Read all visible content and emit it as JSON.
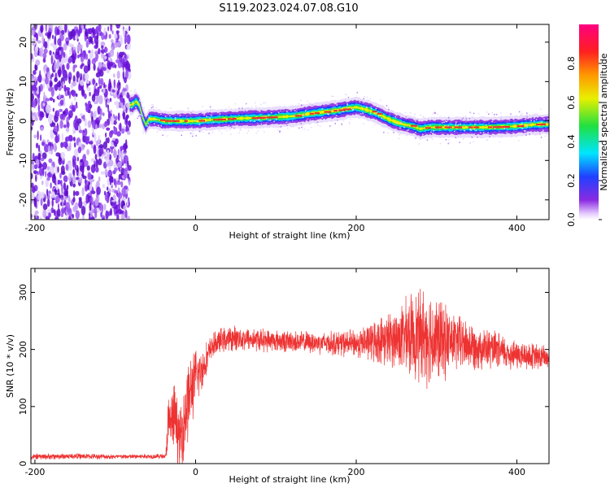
{
  "title": "S119.2023.024.07.08.G10",
  "colors": {
    "snr_line": "#ee3333",
    "spectrogram_noise": "#7a22e6",
    "track_core": "#e63030",
    "background": "#ffffff"
  },
  "chart_data": [
    {
      "type": "heatmap",
      "title": "S119.2023.024.07.08.G10",
      "xlabel": "Height of straight line (km)",
      "ylabel": "Frequency (Hz)",
      "xlim": [
        -205,
        440
      ],
      "ylim": [
        -25,
        24.5
      ],
      "xticks": [
        -200,
        0,
        200,
        400
      ],
      "yticks": [
        -20,
        -10,
        0,
        10,
        20
      ],
      "grid": false,
      "colorbar": {
        "label": "Normalized spectral amplitude",
        "range": [
          0.0,
          1.0
        ],
        "ticks": [
          "0.0",
          "0.2",
          "0.4",
          "0.6",
          "0.8"
        ],
        "colormap": "rainbow (white-violet-blue-cyan-green-yellow-orange-red-magenta)"
      },
      "noise_region": {
        "x_from": -205,
        "x_to": -82
      },
      "peak_frequency_track": {
        "x": [
          -82,
          -78,
          -74,
          -70,
          -66,
          -62,
          -58,
          -50,
          -40,
          -20,
          0,
          20,
          40,
          60,
          80,
          100,
          120,
          140,
          160,
          180,
          190,
          200,
          210,
          220,
          230,
          240,
          250,
          260,
          270,
          280,
          290,
          300,
          320,
          340,
          360,
          380,
          400,
          420,
          440
        ],
        "y": [
          4,
          4.2,
          5,
          4,
          1,
          -1,
          0.5,
          0.5,
          0,
          0,
          0,
          0.3,
          0.5,
          0.7,
          0.8,
          1,
          1.2,
          1.8,
          2.3,
          2.8,
          3.2,
          3.5,
          3,
          2.4,
          1.5,
          0.5,
          -0.3,
          -0.9,
          -1.3,
          -2,
          -1.6,
          -1.6,
          -1.6,
          -1.6,
          -1.6,
          -1.5,
          -1.3,
          -0.9,
          -0.8
        ]
      }
    },
    {
      "type": "line",
      "title": "",
      "xlabel": "Height of straight line (km)",
      "ylabel": "SNR (10 * v/v)",
      "xlim": [
        -205,
        440
      ],
      "ylim": [
        0,
        342
      ],
      "xticks": [
        -200,
        0,
        200,
        400
      ],
      "yticks": [
        0,
        100,
        200,
        300
      ],
      "grid": false,
      "series": [
        {
          "x": [
            -205,
            -150,
            -100,
            -37,
            -35,
            -30,
            -25,
            -20,
            -15,
            -10,
            -5,
            0,
            10,
            20,
            30,
            50,
            100,
            150,
            200,
            250,
            270,
            290,
            300,
            320,
            350,
            400,
            440
          ],
          "y": [
            12,
            13,
            12,
            13,
            60,
            75,
            80,
            40,
            70,
            110,
            130,
            150,
            170,
            205,
            215,
            220,
            215,
            212,
            210,
            220,
            225,
            225,
            215,
            215,
            205,
            190,
            185
          ],
          "spread": [
            6,
            6,
            5,
            5,
            60,
            70,
            70,
            60,
            80,
            90,
            70,
            60,
            40,
            25,
            25,
            25,
            22,
            22,
            28,
            60,
            85,
            100,
            90,
            60,
            45,
            30,
            25
          ]
        }
      ]
    }
  ]
}
